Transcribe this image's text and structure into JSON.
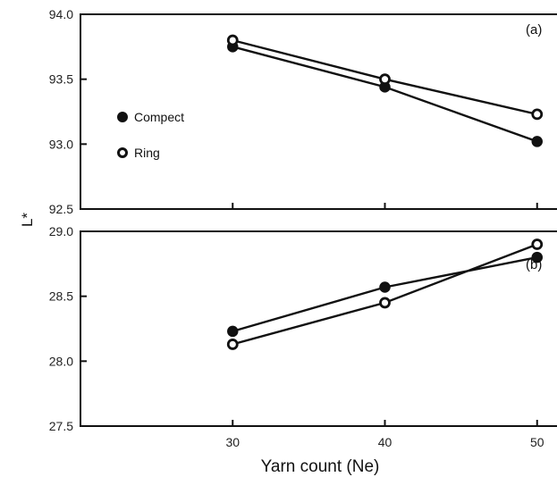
{
  "chart_data": [
    {
      "type": "line",
      "panel_label": "(a)",
      "x": [
        30,
        40,
        50
      ],
      "xlim": [
        20,
        60
      ],
      "ylim": [
        92.5,
        94.0
      ],
      "yticks": [
        "94.0",
        "93.5",
        "93.0",
        "92.5"
      ],
      "series": [
        {
          "name": "Compect",
          "marker": "filled-circle",
          "values": [
            93.75,
            93.44,
            93.02
          ]
        },
        {
          "name": "Ring",
          "marker": "open-circle",
          "values": [
            93.8,
            93.5,
            93.23
          ]
        }
      ],
      "legend_position": "left"
    },
    {
      "type": "line",
      "panel_label": "(b)",
      "x": [
        30,
        40,
        50
      ],
      "xlim": [
        20,
        60
      ],
      "ylim": [
        27.5,
        29.0
      ],
      "yticks": [
        "29.0",
        "28.5",
        "28.0",
        "27.5"
      ],
      "series": [
        {
          "name": "Compect",
          "marker": "filled-circle",
          "values": [
            28.23,
            28.57,
            28.8
          ]
        },
        {
          "name": "Ring",
          "marker": "open-circle",
          "values": [
            28.13,
            28.45,
            28.9
          ]
        }
      ]
    }
  ],
  "shared": {
    "ylabel": "L*",
    "xlabel": "Yarn count (Ne)",
    "xticks": [
      "30",
      "40",
      "50"
    ]
  }
}
